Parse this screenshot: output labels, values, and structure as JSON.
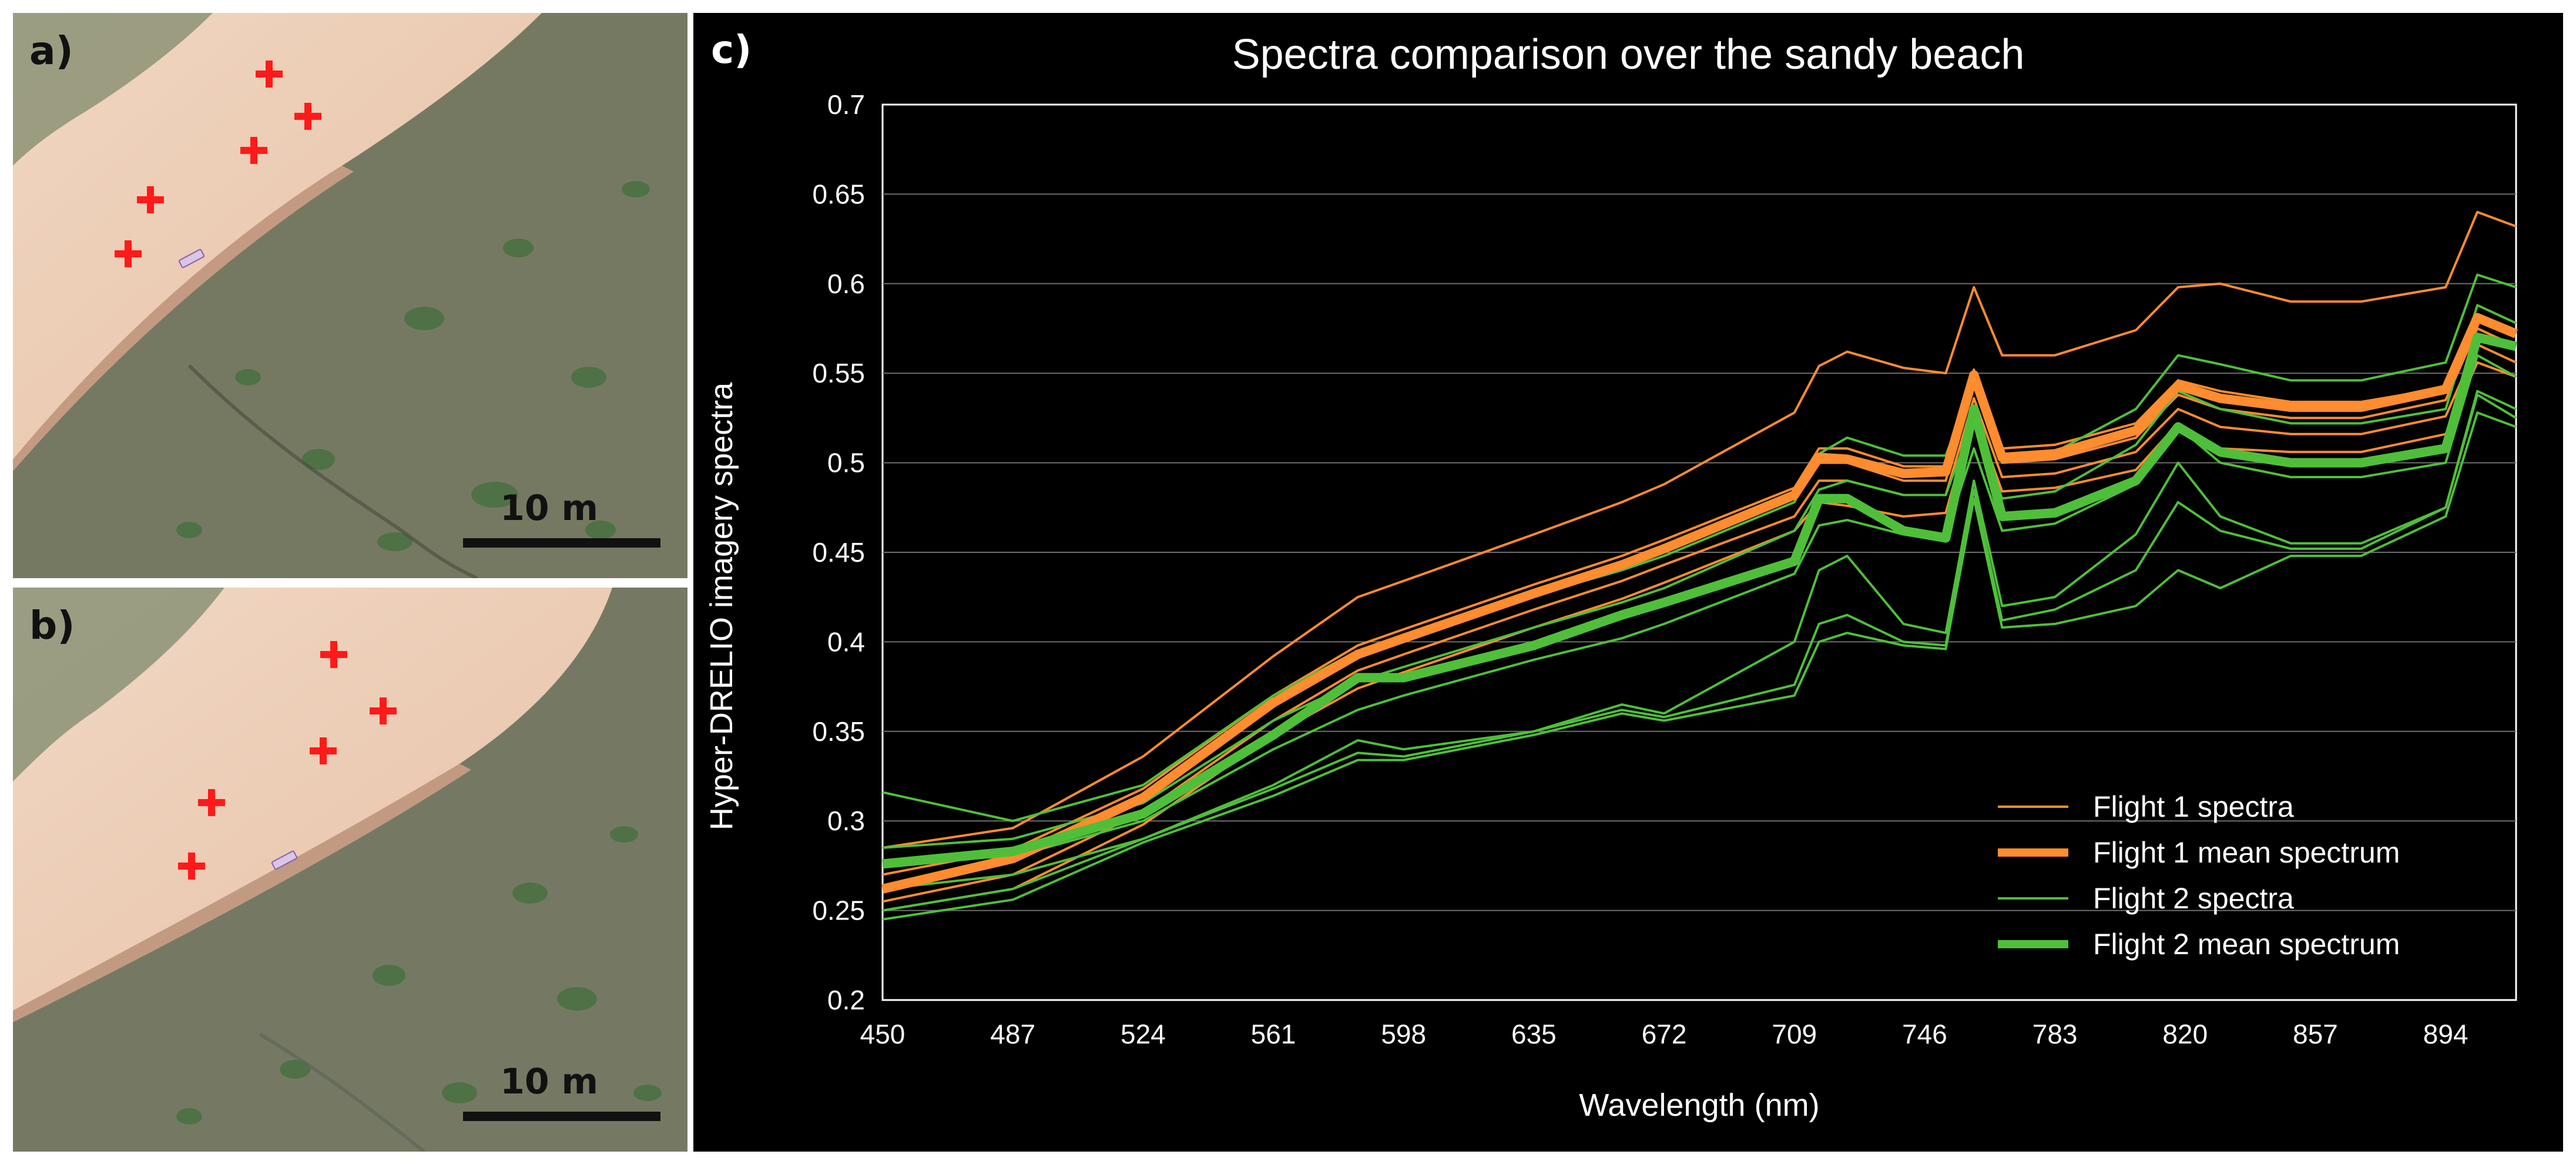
{
  "panels": {
    "a": {
      "letter": "a)",
      "scale_label": "10 m"
    },
    "b": {
      "letter": "b)",
      "scale_label": "10 m"
    },
    "c": {
      "letter": "c)"
    }
  },
  "colors": {
    "flight1": "#ff8c2e",
    "flight2": "#4fbf3a",
    "marker": "#ff1a1a",
    "chart_bg": "#000000",
    "grid": "#6e6e6e"
  },
  "chart_data": {
    "type": "line",
    "title": "Spectra comparison over the sandy beach",
    "xlabel": "Wavelength (nm)",
    "ylabel": "Hyper-DRELIO imagery spectra",
    "xlim": [
      450,
      914
    ],
    "ylim": [
      0.2,
      0.7
    ],
    "x_ticks": [
      450,
      487,
      524,
      561,
      598,
      635,
      672,
      709,
      746,
      783,
      820,
      857,
      894
    ],
    "y_ticks": [
      0.2,
      0.25,
      0.3,
      0.35,
      0.4,
      0.45,
      0.5,
      0.55,
      0.6,
      0.65,
      0.7
    ],
    "grid": true,
    "legend_position": "bottom-right",
    "x": [
      450,
      487,
      524,
      561,
      585,
      598,
      635,
      660,
      672,
      709,
      716,
      724,
      740,
      752,
      760,
      768,
      783,
      806,
      818,
      830,
      850,
      870,
      894,
      903,
      914
    ],
    "series": [
      {
        "name": "Flight 1 spectra",
        "group": "flight1",
        "style": "thin",
        "values": [
          0.285,
          0.296,
          0.336,
          0.392,
          0.425,
          0.434,
          0.46,
          0.478,
          0.488,
          0.528,
          0.554,
          0.562,
          0.553,
          0.55,
          0.598,
          0.56,
          0.56,
          0.574,
          0.598,
          0.6,
          0.59,
          0.59,
          0.598,
          0.64,
          0.632
        ]
      },
      {
        "name": "Flight 1 spectra",
        "group": "flight1",
        "style": "thin",
        "values": [
          0.27,
          0.284,
          0.318,
          0.37,
          0.398,
          0.407,
          0.432,
          0.448,
          0.457,
          0.486,
          0.508,
          0.508,
          0.498,
          0.498,
          0.552,
          0.508,
          0.51,
          0.522,
          0.546,
          0.54,
          0.534,
          0.534,
          0.542,
          0.582,
          0.574
        ]
      },
      {
        "name": "Flight 1 spectra",
        "group": "flight1",
        "style": "thin",
        "values": [
          0.262,
          0.278,
          0.312,
          0.364,
          0.392,
          0.401,
          0.426,
          0.442,
          0.451,
          0.48,
          0.5,
          0.5,
          0.49,
          0.49,
          0.545,
          0.5,
          0.502,
          0.514,
          0.538,
          0.53,
          0.525,
          0.525,
          0.535,
          0.575,
          0.565
        ]
      },
      {
        "name": "Flight 1 spectra",
        "group": "flight1",
        "style": "thin",
        "values": [
          0.255,
          0.27,
          0.305,
          0.356,
          0.384,
          0.393,
          0.418,
          0.434,
          0.443,
          0.47,
          0.49,
          0.49,
          0.482,
          0.482,
          0.536,
          0.492,
          0.494,
          0.506,
          0.53,
          0.52,
          0.516,
          0.516,
          0.526,
          0.566,
          0.556
        ]
      },
      {
        "name": "Flight 1 spectra",
        "group": "flight1",
        "style": "thin",
        "values": [
          0.25,
          0.262,
          0.298,
          0.348,
          0.374,
          0.383,
          0.408,
          0.424,
          0.433,
          0.462,
          0.478,
          0.476,
          0.47,
          0.472,
          0.528,
          0.484,
          0.486,
          0.496,
          0.522,
          0.508,
          0.506,
          0.506,
          0.516,
          0.556,
          0.548
        ]
      },
      {
        "name": "Flight 1 mean spectrum",
        "group": "flight1",
        "style": "thick",
        "values": [
          0.262,
          0.279,
          0.313,
          0.366,
          0.393,
          0.402,
          0.427,
          0.443,
          0.452,
          0.482,
          0.503,
          0.502,
          0.494,
          0.495,
          0.549,
          0.503,
          0.505,
          0.518,
          0.543,
          0.536,
          0.531,
          0.531,
          0.541,
          0.581,
          0.572
        ]
      },
      {
        "name": "Flight 2 spectra",
        "group": "flight2",
        "style": "thin",
        "values": [
          0.316,
          0.3,
          0.32,
          0.37,
          0.395,
          0.404,
          0.426,
          0.44,
          0.448,
          0.478,
          0.505,
          0.514,
          0.504,
          0.504,
          0.545,
          0.502,
          0.506,
          0.53,
          0.56,
          0.555,
          0.546,
          0.546,
          0.556,
          0.605,
          0.598
        ]
      },
      {
        "name": "Flight 2 spectra",
        "group": "flight2",
        "style": "thin",
        "values": [
          0.285,
          0.29,
          0.31,
          0.356,
          0.378,
          0.386,
          0.408,
          0.422,
          0.43,
          0.462,
          0.485,
          0.49,
          0.482,
          0.482,
          0.525,
          0.48,
          0.484,
          0.51,
          0.54,
          0.53,
          0.522,
          0.522,
          0.53,
          0.588,
          0.578
        ]
      },
      {
        "name": "Flight 2 spectra",
        "group": "flight2",
        "style": "thin",
        "values": [
          0.278,
          0.28,
          0.3,
          0.34,
          0.362,
          0.37,
          0.39,
          0.402,
          0.41,
          0.438,
          0.465,
          0.468,
          0.46,
          0.46,
          0.508,
          0.462,
          0.466,
          0.488,
          0.52,
          0.5,
          0.492,
          0.492,
          0.5,
          0.56,
          0.548
        ]
      },
      {
        "name": "Flight 2 spectra",
        "group": "flight2",
        "style": "thin",
        "values": [
          0.262,
          0.27,
          0.29,
          0.32,
          0.345,
          0.34,
          0.35,
          0.365,
          0.36,
          0.4,
          0.44,
          0.448,
          0.41,
          0.405,
          0.49,
          0.42,
          0.425,
          0.46,
          0.5,
          0.47,
          0.455,
          0.455,
          0.475,
          0.54,
          0.53
        ]
      },
      {
        "name": "Flight 2 spectra",
        "group": "flight2",
        "style": "thin",
        "values": [
          0.25,
          0.262,
          0.29,
          0.318,
          0.338,
          0.336,
          0.35,
          0.362,
          0.358,
          0.376,
          0.41,
          0.415,
          0.4,
          0.398,
          0.485,
          0.412,
          0.418,
          0.44,
          0.478,
          0.462,
          0.452,
          0.452,
          0.475,
          0.538,
          0.525
        ]
      },
      {
        "name": "Flight 2 spectra",
        "group": "flight2",
        "style": "thin",
        "values": [
          0.245,
          0.256,
          0.288,
          0.314,
          0.334,
          0.334,
          0.348,
          0.36,
          0.356,
          0.37,
          0.4,
          0.405,
          0.398,
          0.396,
          0.48,
          0.408,
          0.41,
          0.42,
          0.44,
          0.43,
          0.448,
          0.448,
          0.47,
          0.528,
          0.52
        ]
      },
      {
        "name": "Flight 2 mean spectrum",
        "group": "flight2",
        "style": "thick",
        "values": [
          0.276,
          0.283,
          0.304,
          0.348,
          0.38,
          0.38,
          0.398,
          0.415,
          0.422,
          0.445,
          0.48,
          0.48,
          0.462,
          0.458,
          0.53,
          0.47,
          0.472,
          0.49,
          0.52,
          0.506,
          0.5,
          0.5,
          0.508,
          0.57,
          0.565
        ]
      }
    ],
    "legend": [
      {
        "label": "Flight 1 spectra",
        "group": "flight1",
        "style": "thin"
      },
      {
        "label": "Flight 1 mean spectrum",
        "group": "flight1",
        "style": "thick"
      },
      {
        "label": "Flight 2 spectra",
        "group": "flight2",
        "style": "thin"
      },
      {
        "label": "Flight 2 mean spectrum",
        "group": "flight2",
        "style": "thick"
      }
    ]
  }
}
